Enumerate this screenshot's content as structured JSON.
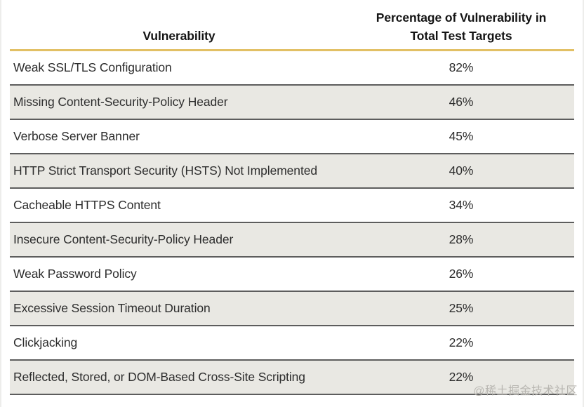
{
  "table": {
    "header": {
      "col1": "Vulnerability",
      "col2": "Percentage of Vulnerability in Total Test Targets"
    },
    "rows": [
      {
        "name": "Weak SSL/TLS Configuration",
        "value": "82%"
      },
      {
        "name": "Missing Content-Security-Policy Header",
        "value": "46%"
      },
      {
        "name": "Verbose Server Banner",
        "value": "45%"
      },
      {
        "name": "HTTP Strict Transport Security (HSTS) Not Implemented",
        "value": "40%"
      },
      {
        "name": "Cacheable HTTPS Content",
        "value": "34%"
      },
      {
        "name": "Insecure Content-Security-Policy Header",
        "value": "28%"
      },
      {
        "name": "Weak Password Policy",
        "value": "26%"
      },
      {
        "name": "Excessive Session Timeout Duration",
        "value": "25%"
      },
      {
        "name": "Clickjacking",
        "value": "22%"
      },
      {
        "name": "Reflected, Stored, or DOM-Based Cross-Site Scripting",
        "value": "22%"
      }
    ]
  },
  "watermark": "@稀土掘金技术社区",
  "colors": {
    "accent_gold": "#e2c065",
    "row_alt_bg": "#e9e8e3",
    "separator": "#5d5d5d",
    "text": "#2d2d2d",
    "header_text": "#141414",
    "watermark": "#b8b6b1"
  },
  "chart_data": {
    "type": "table",
    "title": "",
    "columns": [
      "Vulnerability",
      "Percentage of Vulnerability in Total Test Targets"
    ],
    "categories": [
      "Weak SSL/TLS Configuration",
      "Missing Content-Security-Policy Header",
      "Verbose Server Banner",
      "HTTP Strict Transport Security (HSTS) Not Implemented",
      "Cacheable HTTPS Content",
      "Insecure Content-Security-Policy Header",
      "Weak Password Policy",
      "Excessive Session Timeout Duration",
      "Clickjacking",
      "Reflected, Stored, or DOM-Based Cross-Site Scripting"
    ],
    "values": [
      82,
      46,
      45,
      40,
      34,
      28,
      26,
      25,
      22,
      22
    ],
    "unit": "%",
    "layout": "two-column table, first column left-aligned, percentage column centered, alternating row shading, gold rule under header"
  }
}
